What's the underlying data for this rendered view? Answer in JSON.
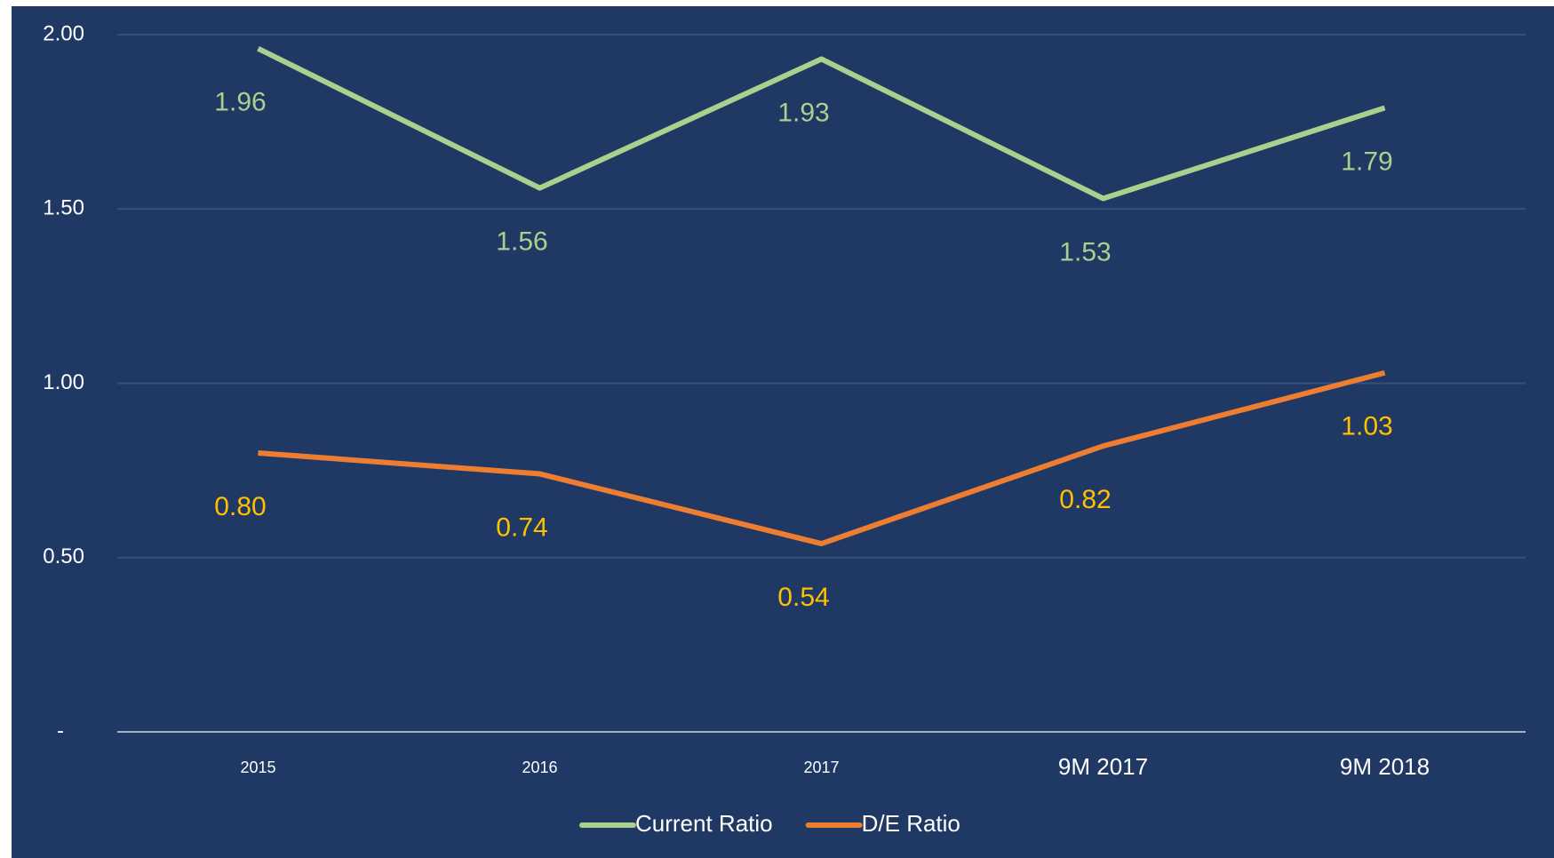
{
  "chart_data": {
    "type": "line",
    "categories": [
      "2015",
      "2016",
      "2017",
      "9M 2017",
      "9M 2018"
    ],
    "series": [
      {
        "name": "Current Ratio",
        "color": "#a9d18e",
        "label_color": "#a9d18e",
        "values": [
          1.96,
          1.56,
          1.93,
          1.53,
          1.79
        ],
        "value_labels": [
          "1.96",
          "1.56",
          "1.93",
          "1.53",
          "1.79"
        ]
      },
      {
        "name": "D/E Ratio",
        "color": "#ed7d31",
        "label_color": "#ffc000",
        "values": [
          0.8,
          0.74,
          0.54,
          0.82,
          1.03
        ],
        "value_labels": [
          "0.80",
          "0.74",
          "0.54",
          "0.82",
          "1.03"
        ]
      }
    ],
    "ylim": [
      0,
      2
    ],
    "yticks": [
      {
        "value": 0,
        "label": "-"
      },
      {
        "value": 0.5,
        "label": "0.50"
      },
      {
        "value": 1,
        "label": "1.00"
      },
      {
        "value": 1.5,
        "label": "1.50"
      },
      {
        "value": 2,
        "label": "2.00"
      }
    ],
    "grid": true,
    "legend": "bottom"
  }
}
